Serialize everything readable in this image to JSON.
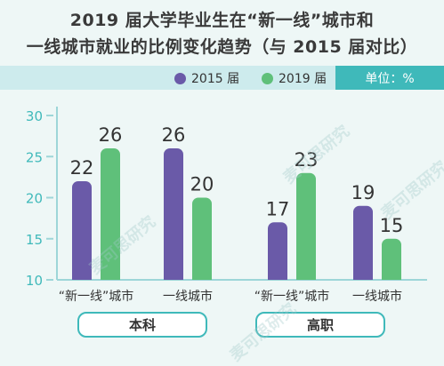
{
  "title_lines": [
    "2019 届大学毕业生在“新一线”城市和",
    "一线城市就业的比例变化趋势（与 2015 届对比）"
  ],
  "unit": "单位：%",
  "colors": {
    "s2015": "#6a5aa8",
    "s2019": "#5fc07a",
    "axis": "#9dd6d8",
    "tick": "#3fb9ba",
    "group_border": "#3fb9ba"
  },
  "watermark": "麦可思研究",
  "chart_data": {
    "type": "bar",
    "ylim": [
      10,
      30
    ],
    "yticks": [
      10,
      15,
      20,
      25,
      30
    ],
    "grid": false,
    "legend_position": "top-center",
    "series": [
      {
        "name": "2015 届",
        "values": [
          22,
          26,
          17,
          19
        ]
      },
      {
        "name": "2019 届",
        "values": [
          26,
          20,
          23,
          15
        ]
      }
    ],
    "categories": [
      "“新一线”城市",
      "一线城市",
      "“新一线”城市",
      "一线城市"
    ],
    "groups": [
      {
        "label": "本科",
        "categories": [
          0,
          1
        ]
      },
      {
        "label": "高职",
        "categories": [
          2,
          3
        ]
      }
    ]
  }
}
